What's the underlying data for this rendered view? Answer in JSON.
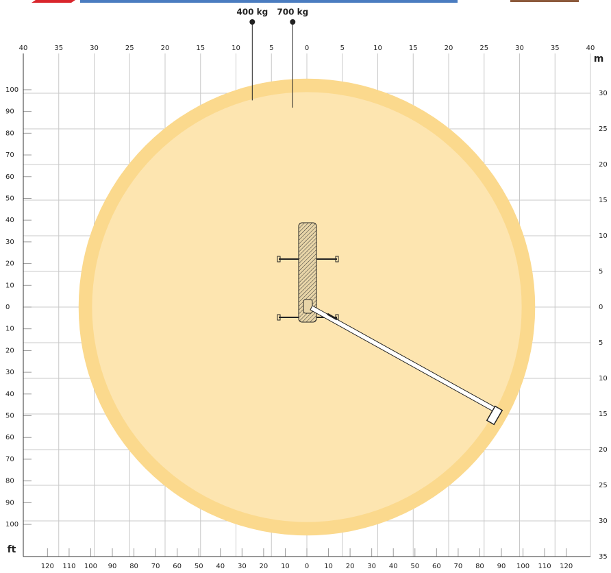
{
  "chart_data": {
    "type": "reach",
    "y2_label": "m",
    "y_label": "ft",
    "series": [
      {
        "name": "400 kg",
        "color": "#fbd98d",
        "values": [
          32.2
        ]
      },
      {
        "name": "700 kg",
        "color": "#fde5b0",
        "values": [
          30.3
        ]
      }
    ],
    "xlim": [
      -40,
      40
    ],
    "xticks": [
      {
        "value": -40,
        "label": "40"
      },
      {
        "value": -35,
        "label": "35"
      },
      {
        "value": -30,
        "label": "30"
      },
      {
        "value": -25,
        "label": "25"
      },
      {
        "value": -20,
        "label": "20"
      },
      {
        "value": -15,
        "label": "15"
      },
      {
        "value": -10,
        "label": "10"
      },
      {
        "value": -5,
        "label": "5"
      },
      0,
      5,
      10,
      15,
      20,
      25,
      30,
      35,
      40
    ],
    "y2lim": [
      -35,
      35
    ],
    "y2ticks": [
      30,
      25,
      20,
      15,
      10,
      5,
      0,
      {
        "value": -5,
        "label": "5"
      },
      {
        "value": -10,
        "label": "10"
      },
      {
        "value": -15,
        "label": "15"
      },
      {
        "value": -20,
        "label": "20"
      },
      {
        "value": -25,
        "label": "25"
      },
      {
        "value": -30,
        "label": "30"
      },
      {
        "value": -35,
        "label": "35"
      }
    ],
    "ylim": [
      -114.8,
      114.8
    ],
    "yticks": [
      100,
      90,
      80,
      70,
      60,
      50,
      40,
      30,
      20,
      10,
      0,
      {
        "value": -10,
        "label": "10"
      },
      {
        "value": -20,
        "label": "20"
      },
      {
        "value": -30,
        "label": "30"
      },
      {
        "value": -40,
        "label": "40"
      },
      {
        "value": -50,
        "label": "50"
      },
      {
        "value": -60,
        "label": "60"
      },
      {
        "value": -70,
        "label": "70"
      },
      {
        "value": -80,
        "label": "80"
      },
      {
        "value": -90,
        "label": "90"
      },
      {
        "value": -100,
        "label": "100"
      }
    ],
    "x2lim": [
      -131.2,
      131.2
    ],
    "x2ticks": [
      {
        "value": -120,
        "label": "120"
      },
      {
        "value": -110,
        "label": "110"
      },
      {
        "value": -100,
        "label": "100"
      },
      {
        "value": -90,
        "label": "90"
      },
      {
        "value": -80,
        "label": "80"
      },
      {
        "value": -70,
        "label": "70"
      },
      {
        "value": -60,
        "label": "60"
      },
      {
        "value": -50,
        "label": "50"
      },
      {
        "value": -40,
        "label": "40"
      },
      {
        "value": -30,
        "label": "30"
      },
      {
        "value": -20,
        "label": "20"
      },
      {
        "value": -10,
        "label": "10"
      },
      0,
      10,
      20,
      30,
      40,
      50,
      60,
      70,
      80,
      90,
      100,
      110,
      120
    ],
    "grid": true
  }
}
